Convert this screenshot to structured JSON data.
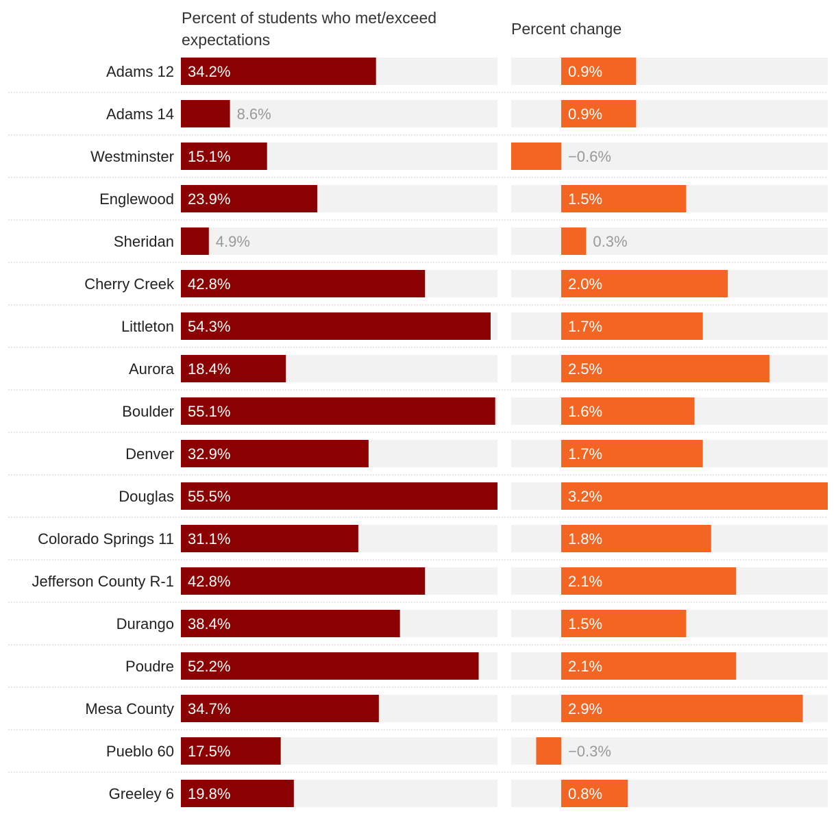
{
  "chart_data": [
    {
      "type": "bar",
      "orientation": "horizontal",
      "title": "Percent of students who met/exceed expectations",
      "categories": [
        "Adams 12",
        "Adams 14",
        "Westminster",
        "Englewood",
        "Sheridan",
        "Cherry Creek",
        "Littleton",
        "Aurora",
        "Boulder",
        "Denver",
        "Douglas",
        "Colorado Springs 11",
        "Jefferson County R-1",
        "Durango",
        "Poudre",
        "Mesa County",
        "Pueblo 60",
        "Greeley 6"
      ],
      "values": [
        34.2,
        8.6,
        15.1,
        23.9,
        4.9,
        42.8,
        54.3,
        18.4,
        55.1,
        32.9,
        55.5,
        31.1,
        42.8,
        38.4,
        52.2,
        34.7,
        17.5,
        19.8
      ],
      "labels": [
        "34.2%",
        "8.6%",
        "15.1%",
        "23.9%",
        "4.9%",
        "42.8%",
        "54.3%",
        "18.4%",
        "55.1%",
        "32.9%",
        "55.5%",
        "31.1%",
        "42.8%",
        "38.4%",
        "52.2%",
        "34.7%",
        "17.5%",
        "19.8%"
      ],
      "xlim": [
        0,
        55.5
      ],
      "color": "#8b0000"
    },
    {
      "type": "bar",
      "orientation": "horizontal",
      "title": "Percent change",
      "categories": [
        "Adams 12",
        "Adams 14",
        "Westminster",
        "Englewood",
        "Sheridan",
        "Cherry Creek",
        "Littleton",
        "Aurora",
        "Boulder",
        "Denver",
        "Douglas",
        "Colorado Springs 11",
        "Jefferson County R-1",
        "Durango",
        "Poudre",
        "Mesa County",
        "Pueblo 60",
        "Greeley 6"
      ],
      "values": [
        0.9,
        0.9,
        -0.6,
        1.5,
        0.3,
        2.0,
        1.7,
        2.5,
        1.6,
        1.7,
        3.2,
        1.8,
        2.1,
        1.5,
        2.1,
        2.9,
        -0.3,
        0.8
      ],
      "labels": [
        "0.9%",
        "0.9%",
        "−0.6%",
        "1.5%",
        "0.3%",
        "2.0%",
        "1.7%",
        "2.5%",
        "1.6%",
        "1.7%",
        "3.2%",
        "1.8%",
        "2.1%",
        "1.5%",
        "2.1%",
        "2.9%",
        "−0.3%",
        "0.8%"
      ],
      "xlim": [
        -0.6,
        3.2
      ],
      "color": "#f26522"
    }
  ],
  "colors": {
    "background_track": "#f2f2f2",
    "label_inside": "#ffffff",
    "label_outside": "#999999",
    "divider": "#cccccc"
  }
}
